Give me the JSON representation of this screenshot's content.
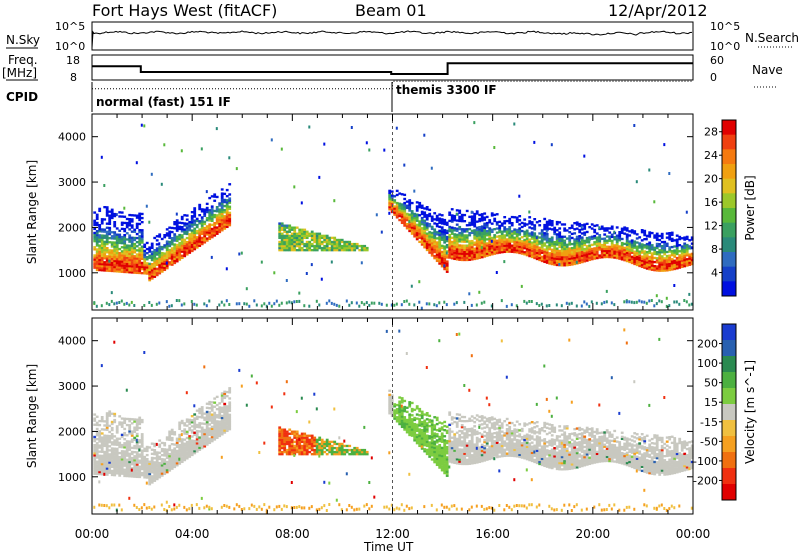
{
  "header": {
    "station": "Fort Hays West (fitACF)",
    "beam": "Beam 01",
    "date": "12/Apr/2012"
  },
  "noise_panel": {
    "left_label": "N.Sky",
    "right_label": "N.Search",
    "left_ticks": [
      "10^5",
      "10^0"
    ],
    "right_ticks": [
      "10^5",
      "10^0"
    ]
  },
  "freq_panel": {
    "left_label_line1": "Freq.",
    "left_label_line2": "[MHz]",
    "right_label": "Nave",
    "left_ticks": [
      "18",
      "8"
    ],
    "right_ticks": [
      "60",
      "0"
    ],
    "cpid_label": "CPID",
    "cpid_segments": [
      {
        "start_hour": 0,
        "name": "normal (fast) 151 IF"
      },
      {
        "start_hour": 12,
        "name": "themis 3300 IF"
      }
    ],
    "freq_step": [
      [
        0,
        13.5
      ],
      [
        1.95,
        11.2
      ],
      [
        11.95,
        10.4
      ],
      [
        14.2,
        14.7
      ],
      [
        24,
        14.7
      ]
    ],
    "nave_step": [
      [
        0,
        4.5
      ],
      [
        11.95,
        4.5
      ],
      [
        12.0,
        7.5
      ],
      [
        14.2,
        7.5
      ],
      [
        24,
        7.5
      ]
    ]
  },
  "colors": {
    "power": [
      "#0010e0",
      "#1540c8",
      "#2f6cc0",
      "#2a8a7a",
      "#3aa060",
      "#58b83a",
      "#9cc82a",
      "#e0c020",
      "#f0a010",
      "#f57a10",
      "#f04010",
      "#e00000"
    ],
    "velocity": [
      "#1a3cd0",
      "#2860b0",
      "#2a8a50",
      "#4cb040",
      "#7ccc40",
      "#c8c8c0",
      "#f0c040",
      "#f5a020",
      "#f07010",
      "#f03010",
      "#e00000"
    ]
  },
  "chart_data": [
    {
      "type": "heatmap",
      "title": "Power",
      "xlabel": "Time UT",
      "ylabel": "Slant Range [km]",
      "xlim": [
        0,
        24
      ],
      "ylim": [
        180,
        4500
      ],
      "x_ticks": [
        "00:00",
        "04:00",
        "08:00",
        "12:00",
        "16:00",
        "20:00",
        "00:00"
      ],
      "y_ticks": [
        1000,
        2000,
        3000,
        4000
      ],
      "colorbar_label": "Power [dB]",
      "colorbar_range": [
        0,
        30
      ],
      "colorbar_ticks": [
        4,
        8,
        12,
        16,
        20,
        24,
        28
      ]
    },
    {
      "type": "heatmap",
      "title": "Velocity",
      "xlabel": "Time UT",
      "ylabel": "Slant Range [km]",
      "xlim": [
        0,
        24
      ],
      "ylim": [
        180,
        4500
      ],
      "x_ticks": [
        "00:00",
        "04:00",
        "08:00",
        "12:00",
        "16:00",
        "20:00",
        "00:00"
      ],
      "y_ticks": [
        1000,
        2000,
        3000,
        4000
      ],
      "colorbar_label": "Velocity [m s^-1]",
      "colorbar_ticks": [
        "200",
        "100",
        "50",
        "15",
        "-15",
        "-50",
        "-100",
        "-200"
      ]
    }
  ]
}
